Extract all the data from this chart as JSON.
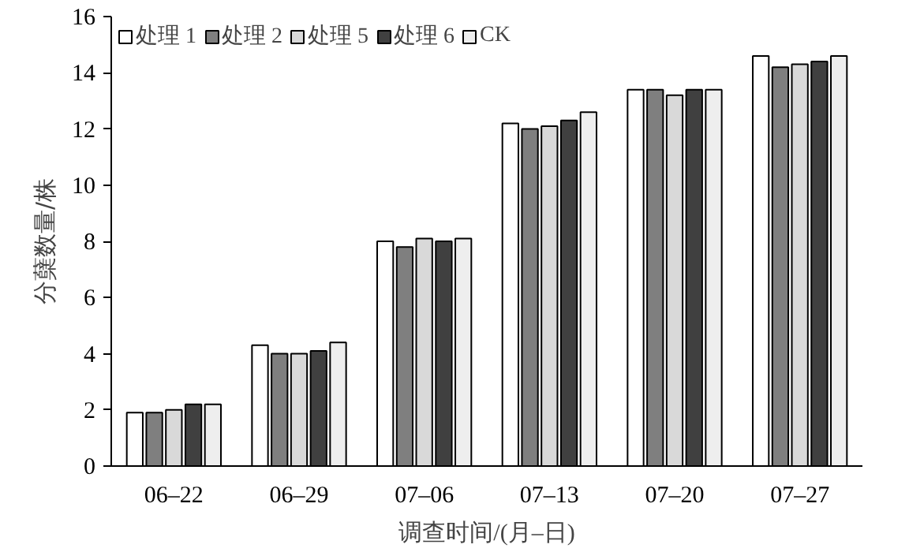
{
  "chart_data": {
    "type": "bar",
    "xlabel": "调查时间/(月–日)",
    "ylabel": "分蘖数量/株",
    "categories": [
      "06–22",
      "06–29",
      "07–06",
      "07–13",
      "07–20",
      "07–27"
    ],
    "series": [
      {
        "name": "处理 1",
        "color": "#ffffff",
        "values": [
          1.9,
          4.3,
          8.0,
          12.2,
          13.4,
          14.6
        ]
      },
      {
        "name": "处理 2",
        "color": "#7f7f7f",
        "values": [
          1.9,
          4.0,
          7.8,
          12.0,
          13.4,
          14.2
        ]
      },
      {
        "name": "处理 5",
        "color": "#d9d9d9",
        "values": [
          2.0,
          4.0,
          8.1,
          12.1,
          13.2,
          14.3
        ]
      },
      {
        "name": "处理 6",
        "color": "#404040",
        "values": [
          2.2,
          4.1,
          8.0,
          12.3,
          13.4,
          14.4
        ]
      },
      {
        "name": "CK",
        "color": "#eeeeee",
        "values": [
          2.2,
          4.4,
          8.1,
          12.6,
          13.4,
          14.6
        ]
      }
    ],
    "ylim": [
      0,
      16
    ],
    "yticks": [
      0,
      2,
      4,
      6,
      8,
      10,
      12,
      14,
      16
    ],
    "grid": false,
    "legend": "top left"
  }
}
